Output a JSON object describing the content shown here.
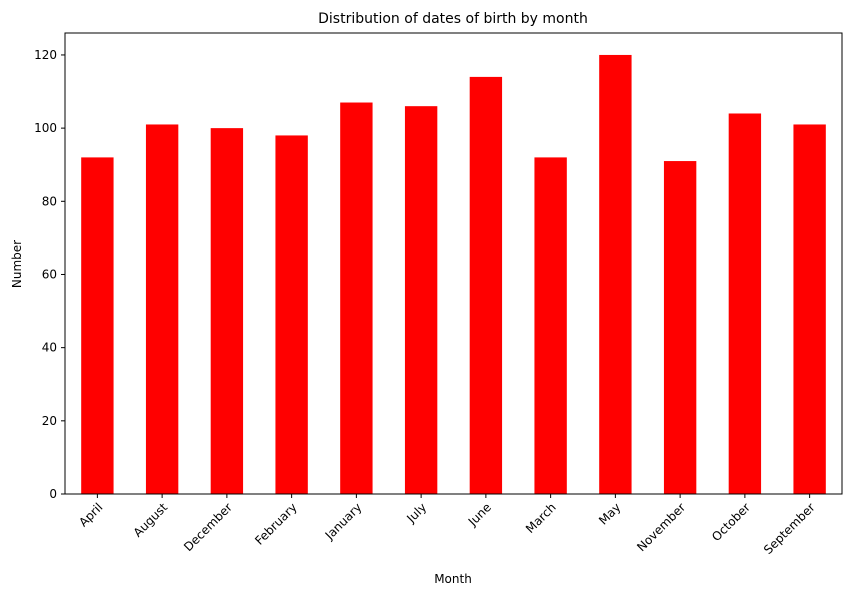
{
  "chart_data": {
    "type": "bar",
    "title": "Distribution of dates of birth by month",
    "xlabel": "Month",
    "ylabel": "Number",
    "categories": [
      "April",
      "August",
      "December",
      "February",
      "January",
      "July",
      "June",
      "March",
      "May",
      "November",
      "October",
      "September"
    ],
    "values": [
      92,
      101,
      100,
      98,
      107,
      106,
      114,
      92,
      120,
      91,
      104,
      101
    ],
    "ylim": [
      0,
      126
    ],
    "yticks": [
      0,
      20,
      40,
      60,
      80,
      100,
      120
    ],
    "bar_color": "#ff0000",
    "grid": false,
    "legend": "none"
  }
}
